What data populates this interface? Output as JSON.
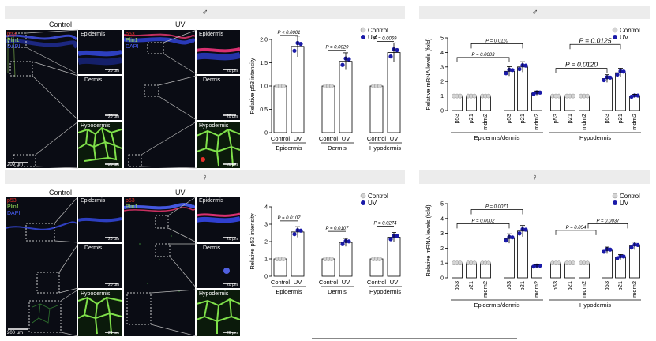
{
  "sections": [
    {
      "header": "♂"
    },
    {
      "header": "♂"
    },
    {
      "header": "♀"
    },
    {
      "header": "♀"
    }
  ],
  "panels": {
    "control_label": "Control",
    "uv_label": "UV",
    "channel_p53": "p53",
    "channel_plin1": "Plin1",
    "channel_dapi": "DAPI",
    "inset_epidermis": "Epidermis",
    "inset_dermis": "Dermis",
    "inset_hypodermis": "Hypodermis",
    "scale_20": "20 µm",
    "scale_200": "200 µm"
  },
  "colors": {
    "control": "#d4d4d4",
    "uv": "#1a1aa8",
    "p53": "#e8302a",
    "plin1": "#9be05a",
    "dapi": "#4a62ff"
  },
  "chart_data": [
    {
      "type": "bar",
      "ylabel": "Relative p53 intensity",
      "ylim": [
        0,
        2
      ],
      "yticks": [
        "0",
        "0.5",
        "1.0",
        "1.5",
        "2.0"
      ],
      "groups": [
        "Epidermis",
        "Dermis",
        "Hypodermis"
      ],
      "categories": [
        "Control",
        "UV"
      ],
      "legend": [
        "Control",
        "UV"
      ],
      "values": [
        [
          1.0,
          1.85
        ],
        [
          1.0,
          1.53
        ],
        [
          1.0,
          1.72
        ]
      ],
      "pvalues": [
        "P < 0.0001",
        "P = 0.0029",
        "P = 0.0059"
      ]
    },
    {
      "type": "bar",
      "ylabel": "Relative mRNA levels (fold)",
      "ylim": [
        0,
        5
      ],
      "yticks": [
        "0",
        "1",
        "2",
        "3",
        "4",
        "5"
      ],
      "groups": [
        "Epidermis/dermis",
        "Hypodermis"
      ],
      "genes": [
        "p53",
        "p21",
        "mdm2",
        "p53",
        "p21",
        "mdm2"
      ],
      "legend": [
        "Control",
        "UV"
      ],
      "control": [
        [
          1,
          1,
          1
        ],
        [
          1,
          1,
          1
        ]
      ],
      "uv": [
        [
          2.7,
          3.0,
          1.2
        ],
        [
          2.2,
          2.6,
          1.0
        ]
      ],
      "pvalues": [
        "P = 0.0110",
        "P = 0.0003",
        "P = 0.0125",
        "P = 0.0120"
      ]
    },
    {
      "type": "bar",
      "ylabel": "Relative p53 intensity",
      "ylim": [
        0,
        4
      ],
      "yticks": [
        "0",
        "1",
        "2",
        "3",
        "4"
      ],
      "groups": [
        "Epidermis",
        "Dermis",
        "Hypodermis"
      ],
      "categories": [
        "Control",
        "UV"
      ],
      "legend": [
        "Control",
        "UV"
      ],
      "values": [
        [
          1.0,
          2.55
        ],
        [
          1.0,
          1.95
        ],
        [
          1.0,
          2.25
        ]
      ],
      "pvalues": [
        "P = 0.0107",
        "P = 0.0107",
        "P = 0.0274"
      ]
    },
    {
      "type": "bar",
      "ylabel": "Relative mRNA levels (fold)",
      "ylim": [
        0,
        5
      ],
      "yticks": [
        "0",
        "1",
        "2",
        "3",
        "4",
        "5"
      ],
      "groups": [
        "Epidermis/dermis",
        "Hypodermis"
      ],
      "genes": [
        "p53",
        "p21",
        "mdm2",
        "p53",
        "p21",
        "mdm2"
      ],
      "legend": [
        "Control",
        "UV"
      ],
      "control": [
        [
          1,
          1,
          1
        ],
        [
          1,
          1,
          1
        ]
      ],
      "uv": [
        [
          2.65,
          3.15,
          0.8
        ],
        [
          1.85,
          1.4,
          2.15
        ]
      ],
      "pvalues": [
        "P = 0.0071",
        "P = 0.0002",
        "P = 0.054",
        "P = 0.0037"
      ]
    }
  ]
}
